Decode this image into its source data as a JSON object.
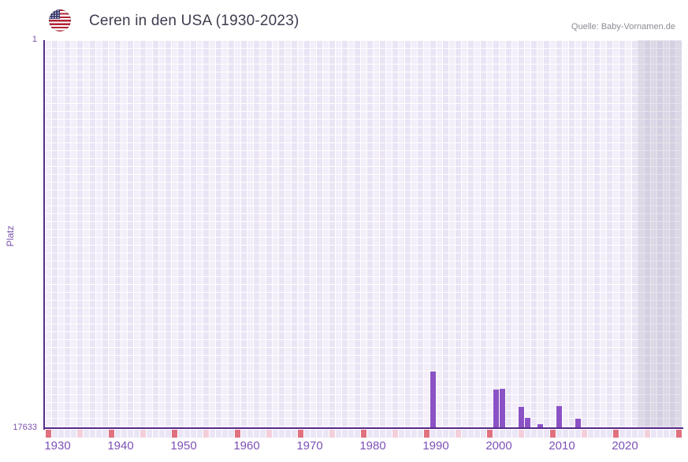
{
  "header": {
    "title": "Ceren in den USA (1930-2023)",
    "source": "Quelle: Baby-Vornamen.de",
    "flag_icon": "us-flag-icon"
  },
  "chart_data": {
    "type": "bar",
    "title": "Ceren in den USA (1930-2023)",
    "source": "Quelle: Baby-Vornamen.de",
    "ylabel": "Platz",
    "y_axis": {
      "top_tick_label": "1",
      "bottom_tick_label": "17633",
      "min": 1,
      "max": 17633,
      "note": "rank axis, 1 = best at top, bars grow upward from 17633 baseline"
    },
    "x_axis": {
      "start_year": 1930,
      "end_year": 2030,
      "data_end_year": 2023,
      "tick_labels": [
        "1930",
        "1940",
        "1950",
        "1960",
        "1970",
        "1980",
        "1990",
        "2000",
        "2010",
        "2020"
      ],
      "decade_tick_marker": "red cell",
      "half_decade_tick_marker": "pink cell"
    },
    "bars": [
      {
        "year": 1991,
        "rank": 15100
      },
      {
        "year": 2001,
        "rank": 15920
      },
      {
        "year": 2002,
        "rank": 15880
      },
      {
        "year": 2005,
        "rank": 16700
      },
      {
        "year": 2006,
        "rank": 17210
      },
      {
        "year": 2008,
        "rank": 17500
      },
      {
        "year": 2011,
        "rank": 16680
      },
      {
        "year": 2014,
        "rank": 17230
      }
    ],
    "no_data_region": {
      "from_year": 2024,
      "to_year": 2030
    },
    "grid": true,
    "legend_position": "none",
    "colors": {
      "bar": "#8b52c6",
      "axis_line": "#572a88",
      "axis_label": "#7c50b5",
      "decade_tick": "#e0717f",
      "half_decade_tick": "#f3cfdb",
      "year_tick": "#ebe6f5",
      "grid_light": "#f3eef9",
      "grid_dark": "#eae4f5",
      "title": "#3d3d4f",
      "source": "#8b8b94"
    }
  }
}
